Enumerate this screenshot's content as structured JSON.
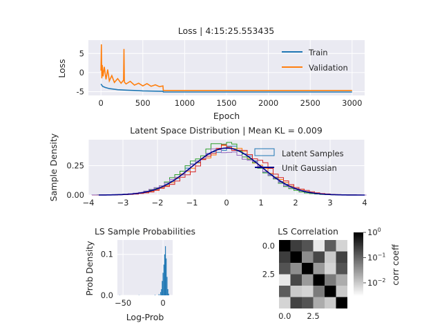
{
  "chart_data": [
    {
      "type": "line",
      "title": "Loss | 4:15:25.553435",
      "xlabel": "Epoch",
      "ylabel": "Loss",
      "xlim": [
        -150,
        3150
      ],
      "ylim": [
        -6,
        8.5
      ],
      "xticks": [
        0,
        500,
        1000,
        1500,
        2000,
        2500,
        3000
      ],
      "yticks": [
        -5,
        0,
        5
      ],
      "grid": true,
      "legend": "top-right",
      "series": [
        {
          "name": "Train",
          "color": "#1f77b4",
          "x": [
            0,
            20,
            50,
            100,
            200,
            300,
            400,
            500,
            600,
            700,
            740,
            745,
            800,
            1000,
            1500,
            2000,
            2500,
            3000
          ],
          "y": [
            -3.0,
            -3.6,
            -3.9,
            -4.2,
            -4.5,
            -4.6,
            -4.7,
            -4.8,
            -4.85,
            -4.9,
            -4.9,
            -5.1,
            -5.1,
            -5.1,
            -5.1,
            -5.1,
            -5.1,
            -5.1
          ]
        },
        {
          "name": "Validation",
          "color": "#ff7f0e",
          "x": [
            0,
            5,
            10,
            15,
            25,
            40,
            60,
            80,
            100,
            130,
            160,
            200,
            240,
            270,
            275,
            280,
            300,
            350,
            400,
            450,
            500,
            550,
            600,
            650,
            700,
            740,
            745,
            800,
            1000,
            1500,
            2000,
            2500,
            3000
          ],
          "y": [
            0.5,
            7.4,
            -1.5,
            2.0,
            -1.0,
            1.5,
            -1.8,
            0.8,
            -2.2,
            -0.8,
            -2.6,
            -1.6,
            -2.8,
            -2.0,
            6.2,
            -2.5,
            -3.0,
            -2.3,
            -3.3,
            -2.8,
            -3.5,
            -2.9,
            -3.6,
            -3.2,
            -3.7,
            -3.5,
            -4.7,
            -4.7,
            -4.7,
            -4.7,
            -4.7,
            -4.7,
            -4.7
          ]
        }
      ]
    },
    {
      "type": "area",
      "title": "Latent Space Distribution | Mean KL = 0.009",
      "xlabel": "",
      "ylabel": "Sample Density",
      "xlim": [
        -4,
        4
      ],
      "ylim": [
        0,
        0.47
      ],
      "xticks": [
        -4,
        -3,
        -2,
        -1,
        0,
        1,
        2,
        3,
        4
      ],
      "yticks": [
        0.0,
        0.25
      ],
      "ytick_labels": [
        "0.00",
        "0.25"
      ],
      "grid": true,
      "legend": "top-right",
      "legend_entries": [
        {
          "name": "Latent Samples",
          "color": "#1f77b4"
        },
        {
          "name": "Unit Gaussian",
          "color": "#00008b"
        }
      ],
      "bin_width": 0.15,
      "histograms": [
        {
          "color": "#1f77b4",
          "mean": 0.0,
          "sd": 1.0,
          "peak_scale": 1.0
        },
        {
          "color": "#ff7f0e",
          "mean": 0.05,
          "sd": 1.0,
          "peak_scale": 1.0
        },
        {
          "color": "#2ca02c",
          "mean": -0.1,
          "sd": 0.97,
          "peak_scale": 1.05
        },
        {
          "color": "#d62728",
          "mean": 0.15,
          "sd": 1.0,
          "peak_scale": 1.02
        },
        {
          "color": "#9467bd",
          "mean": -0.05,
          "sd": 1.03,
          "peak_scale": 0.98
        }
      ],
      "gaussian": {
        "mean": 0,
        "sd": 1
      }
    },
    {
      "type": "bar",
      "title": "LS Sample Probabilities",
      "xlabel": "Log-Prob",
      "ylabel": "Prob Density",
      "xlim": [
        -57,
        12
      ],
      "ylim": [
        0,
        0.135
      ],
      "xticks": [
        -50,
        0
      ],
      "yticks": [
        0.0,
        0.1
      ],
      "grid": true,
      "color": "#1f77b4",
      "bins": [
        {
          "x": -54,
          "v": 0.0005
        },
        {
          "x": -30,
          "v": 0.0005
        },
        {
          "x": -10,
          "v": 0.001
        },
        {
          "x": -5,
          "v": 0.003
        },
        {
          "x": -3,
          "v": 0.008
        },
        {
          "x": -2,
          "v": 0.015
        },
        {
          "x": -1,
          "v": 0.035
        },
        {
          "x": 0,
          "v": 0.055
        },
        {
          "x": 1,
          "v": 0.075
        },
        {
          "x": 2,
          "v": 0.1
        },
        {
          "x": 3,
          "v": 0.12
        },
        {
          "x": 4,
          "v": 0.09
        },
        {
          "x": 5,
          "v": 0.045
        },
        {
          "x": 6,
          "v": 0.015
        },
        {
          "x": 7,
          "v": 0.004
        }
      ]
    },
    {
      "type": "heatmap",
      "title": "LS Correlation",
      "xlabel": "",
      "ylabel": "",
      "xticks": [
        0.0,
        2.5
      ],
      "yticks": [
        0.0,
        2.5
      ],
      "colorbar": {
        "label": "corr coeff",
        "scale": "log",
        "ticks": [
          "10^0",
          "10^-1",
          "10^-2"
        ],
        "range": [
          0.003,
          1
        ]
      },
      "matrix": [
        [
          1.0,
          0.25,
          0.15,
          0.005,
          0.12,
          0.008
        ],
        [
          0.25,
          1.0,
          0.04,
          0.2,
          0.01,
          0.22
        ],
        [
          0.15,
          0.04,
          1.0,
          0.03,
          0.008,
          0.15
        ],
        [
          0.005,
          0.2,
          0.03,
          1.0,
          0.06,
          0.02
        ],
        [
          0.12,
          0.01,
          0.008,
          0.06,
          1.0,
          0.01
        ],
        [
          0.008,
          0.22,
          0.15,
          0.02,
          0.01,
          1.0
        ]
      ]
    }
  ]
}
